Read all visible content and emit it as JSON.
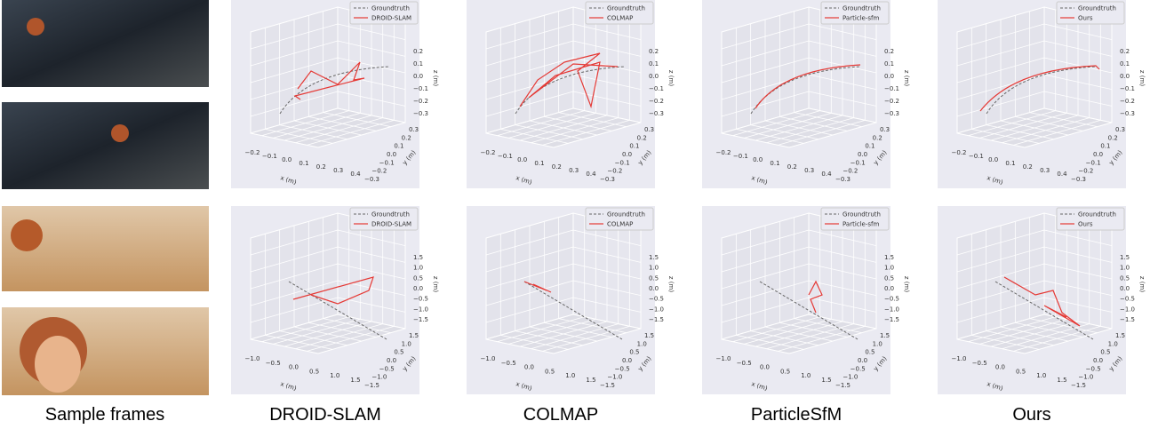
{
  "columns": [
    "Sample frames",
    "DROID-SLAM",
    "COLMAP",
    "ParticleSfM",
    "Ours"
  ],
  "legend": {
    "groundtruth": "Groundtruth",
    "methods": [
      "DROID-SLAM",
      "COLMAP",
      "Particle-sfm",
      "Ours"
    ]
  },
  "axis_labels": {
    "x": "x (m)",
    "y": "y (m)",
    "z": "z (m)"
  },
  "rows": [
    {
      "z_ticks": [
        "0.2",
        "0.1",
        "0.0",
        "−0.1",
        "−0.2",
        "−0.3"
      ],
      "x_ticks": [
        "−0.2",
        "−0.1",
        "0.0",
        "0.1",
        "0.2",
        "0.3",
        "0.4"
      ],
      "y_ticks": [
        "0.3",
        "0.2",
        "0.1",
        "0.0",
        "−0.1",
        "−0.2",
        "−0.3"
      ]
    },
    {
      "z_ticks": [
        "1.5",
        "1.0",
        "0.5",
        "0.0",
        "−0.5",
        "−1.0",
        "−1.5"
      ],
      "x_ticks": [
        "−1.0",
        "−0.5",
        "0.0",
        "0.5",
        "1.0",
        "1.5"
      ],
      "y_ticks": [
        "1.5",
        "1.0",
        "0.5",
        "0.0",
        "−0.5",
        "−1.0",
        "−1.5"
      ]
    }
  ]
}
